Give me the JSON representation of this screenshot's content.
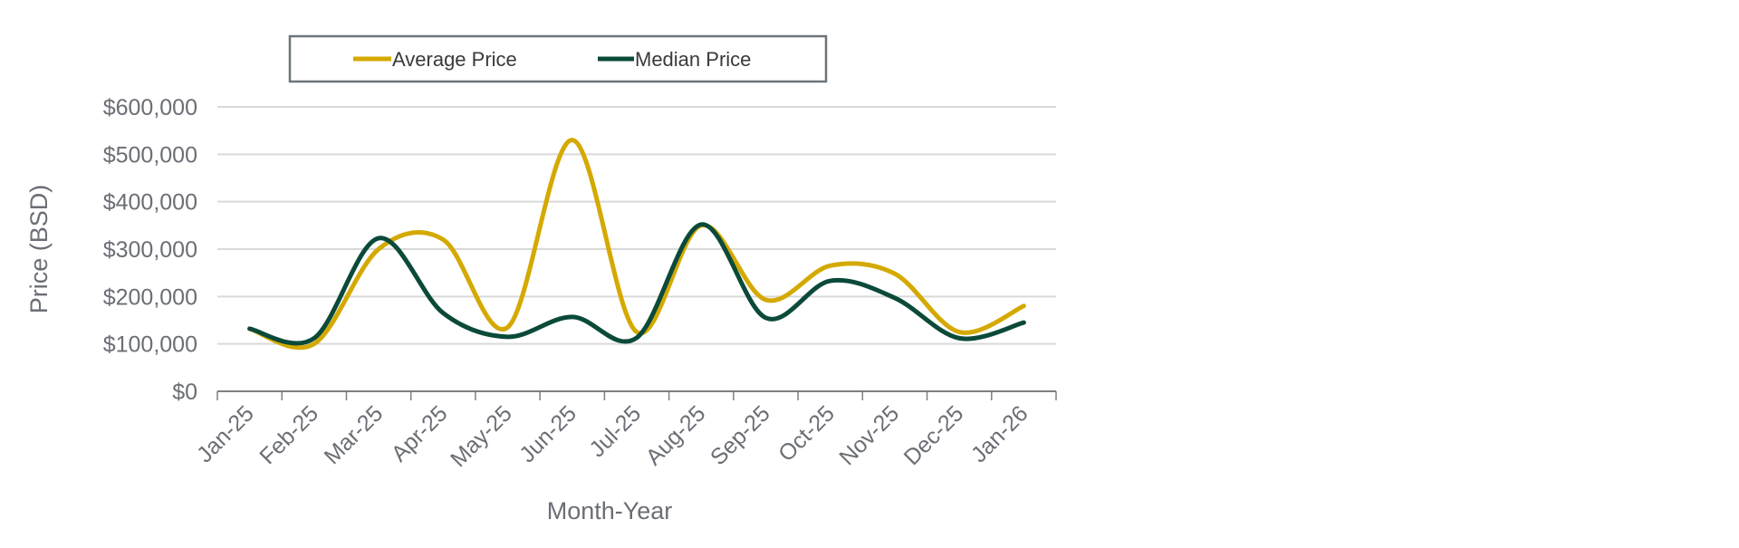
{
  "chart_data": {
    "type": "line",
    "title": "",
    "xlabel": "Month-Year",
    "ylabel": "Price (BSD)",
    "ylim": [
      0,
      600000
    ],
    "yticks": [
      0,
      100000,
      200000,
      300000,
      400000,
      500000,
      600000
    ],
    "ytick_labels": [
      "$0",
      "$100,000",
      "$200,000",
      "$300,000",
      "$400,000",
      "$500,000",
      "$600,000"
    ],
    "categories": [
      "Jan-25",
      "Feb-25",
      "Mar-25",
      "Apr-25",
      "May-25",
      "Jun-25",
      "Jul-25",
      "Aug-25",
      "Sep-25",
      "Oct-25",
      "Nov-25",
      "Dec-25",
      "Jan-26"
    ],
    "grid": true,
    "legend_position": "top",
    "series": [
      {
        "name": "Average Price",
        "color": "#d4a900",
        "values": [
          132000,
          100000,
          300000,
          320000,
          135000,
          530000,
          125000,
          350000,
          193000,
          265000,
          248000,
          125000,
          180000
        ]
      },
      {
        "name": "Median Price",
        "color": "#0b4a3a",
        "values": [
          132000,
          112000,
          323000,
          165000,
          115000,
          157000,
          113000,
          352000,
          155000,
          233000,
          197000,
          112000,
          145000
        ]
      }
    ]
  }
}
